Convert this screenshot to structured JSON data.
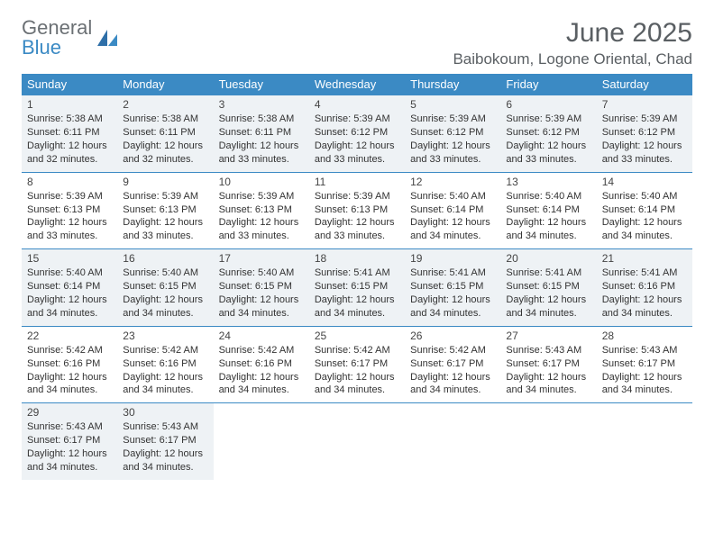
{
  "logo": {
    "line1": "General",
    "line2": "Blue"
  },
  "header": {
    "month_title": "June 2025",
    "location": "Baibokoum, Logone Oriental, Chad"
  },
  "colors": {
    "header_bg": "#3b8ac4",
    "header_text": "#ffffff",
    "shaded_row_bg": "#eef2f5",
    "border": "#3b8ac4",
    "logo_gray": "#6b7074",
    "logo_blue": "#3b8ac4",
    "title_color": "#5a5f63"
  },
  "weekdays": [
    "Sunday",
    "Monday",
    "Tuesday",
    "Wednesday",
    "Thursday",
    "Friday",
    "Saturday"
  ],
  "weeks": [
    {
      "shaded": true,
      "days": [
        {
          "n": "1",
          "sr": "Sunrise: 5:38 AM",
          "ss": "Sunset: 6:11 PM",
          "d1": "Daylight: 12 hours",
          "d2": "and 32 minutes."
        },
        {
          "n": "2",
          "sr": "Sunrise: 5:38 AM",
          "ss": "Sunset: 6:11 PM",
          "d1": "Daylight: 12 hours",
          "d2": "and 32 minutes."
        },
        {
          "n": "3",
          "sr": "Sunrise: 5:38 AM",
          "ss": "Sunset: 6:11 PM",
          "d1": "Daylight: 12 hours",
          "d2": "and 33 minutes."
        },
        {
          "n": "4",
          "sr": "Sunrise: 5:39 AM",
          "ss": "Sunset: 6:12 PM",
          "d1": "Daylight: 12 hours",
          "d2": "and 33 minutes."
        },
        {
          "n": "5",
          "sr": "Sunrise: 5:39 AM",
          "ss": "Sunset: 6:12 PM",
          "d1": "Daylight: 12 hours",
          "d2": "and 33 minutes."
        },
        {
          "n": "6",
          "sr": "Sunrise: 5:39 AM",
          "ss": "Sunset: 6:12 PM",
          "d1": "Daylight: 12 hours",
          "d2": "and 33 minutes."
        },
        {
          "n": "7",
          "sr": "Sunrise: 5:39 AM",
          "ss": "Sunset: 6:12 PM",
          "d1": "Daylight: 12 hours",
          "d2": "and 33 minutes."
        }
      ]
    },
    {
      "shaded": false,
      "days": [
        {
          "n": "8",
          "sr": "Sunrise: 5:39 AM",
          "ss": "Sunset: 6:13 PM",
          "d1": "Daylight: 12 hours",
          "d2": "and 33 minutes."
        },
        {
          "n": "9",
          "sr": "Sunrise: 5:39 AM",
          "ss": "Sunset: 6:13 PM",
          "d1": "Daylight: 12 hours",
          "d2": "and 33 minutes."
        },
        {
          "n": "10",
          "sr": "Sunrise: 5:39 AM",
          "ss": "Sunset: 6:13 PM",
          "d1": "Daylight: 12 hours",
          "d2": "and 33 minutes."
        },
        {
          "n": "11",
          "sr": "Sunrise: 5:39 AM",
          "ss": "Sunset: 6:13 PM",
          "d1": "Daylight: 12 hours",
          "d2": "and 33 minutes."
        },
        {
          "n": "12",
          "sr": "Sunrise: 5:40 AM",
          "ss": "Sunset: 6:14 PM",
          "d1": "Daylight: 12 hours",
          "d2": "and 34 minutes."
        },
        {
          "n": "13",
          "sr": "Sunrise: 5:40 AM",
          "ss": "Sunset: 6:14 PM",
          "d1": "Daylight: 12 hours",
          "d2": "and 34 minutes."
        },
        {
          "n": "14",
          "sr": "Sunrise: 5:40 AM",
          "ss": "Sunset: 6:14 PM",
          "d1": "Daylight: 12 hours",
          "d2": "and 34 minutes."
        }
      ]
    },
    {
      "shaded": true,
      "days": [
        {
          "n": "15",
          "sr": "Sunrise: 5:40 AM",
          "ss": "Sunset: 6:14 PM",
          "d1": "Daylight: 12 hours",
          "d2": "and 34 minutes."
        },
        {
          "n": "16",
          "sr": "Sunrise: 5:40 AM",
          "ss": "Sunset: 6:15 PM",
          "d1": "Daylight: 12 hours",
          "d2": "and 34 minutes."
        },
        {
          "n": "17",
          "sr": "Sunrise: 5:40 AM",
          "ss": "Sunset: 6:15 PM",
          "d1": "Daylight: 12 hours",
          "d2": "and 34 minutes."
        },
        {
          "n": "18",
          "sr": "Sunrise: 5:41 AM",
          "ss": "Sunset: 6:15 PM",
          "d1": "Daylight: 12 hours",
          "d2": "and 34 minutes."
        },
        {
          "n": "19",
          "sr": "Sunrise: 5:41 AM",
          "ss": "Sunset: 6:15 PM",
          "d1": "Daylight: 12 hours",
          "d2": "and 34 minutes."
        },
        {
          "n": "20",
          "sr": "Sunrise: 5:41 AM",
          "ss": "Sunset: 6:15 PM",
          "d1": "Daylight: 12 hours",
          "d2": "and 34 minutes."
        },
        {
          "n": "21",
          "sr": "Sunrise: 5:41 AM",
          "ss": "Sunset: 6:16 PM",
          "d1": "Daylight: 12 hours",
          "d2": "and 34 minutes."
        }
      ]
    },
    {
      "shaded": false,
      "days": [
        {
          "n": "22",
          "sr": "Sunrise: 5:42 AM",
          "ss": "Sunset: 6:16 PM",
          "d1": "Daylight: 12 hours",
          "d2": "and 34 minutes."
        },
        {
          "n": "23",
          "sr": "Sunrise: 5:42 AM",
          "ss": "Sunset: 6:16 PM",
          "d1": "Daylight: 12 hours",
          "d2": "and 34 minutes."
        },
        {
          "n": "24",
          "sr": "Sunrise: 5:42 AM",
          "ss": "Sunset: 6:16 PM",
          "d1": "Daylight: 12 hours",
          "d2": "and 34 minutes."
        },
        {
          "n": "25",
          "sr": "Sunrise: 5:42 AM",
          "ss": "Sunset: 6:17 PM",
          "d1": "Daylight: 12 hours",
          "d2": "and 34 minutes."
        },
        {
          "n": "26",
          "sr": "Sunrise: 5:42 AM",
          "ss": "Sunset: 6:17 PM",
          "d1": "Daylight: 12 hours",
          "d2": "and 34 minutes."
        },
        {
          "n": "27",
          "sr": "Sunrise: 5:43 AM",
          "ss": "Sunset: 6:17 PM",
          "d1": "Daylight: 12 hours",
          "d2": "and 34 minutes."
        },
        {
          "n": "28",
          "sr": "Sunrise: 5:43 AM",
          "ss": "Sunset: 6:17 PM",
          "d1": "Daylight: 12 hours",
          "d2": "and 34 minutes."
        }
      ]
    },
    {
      "shaded": true,
      "days": [
        {
          "n": "29",
          "sr": "Sunrise: 5:43 AM",
          "ss": "Sunset: 6:17 PM",
          "d1": "Daylight: 12 hours",
          "d2": "and 34 minutes."
        },
        {
          "n": "30",
          "sr": "Sunrise: 5:43 AM",
          "ss": "Sunset: 6:17 PM",
          "d1": "Daylight: 12 hours",
          "d2": "and 34 minutes."
        },
        null,
        null,
        null,
        null,
        null
      ]
    }
  ]
}
